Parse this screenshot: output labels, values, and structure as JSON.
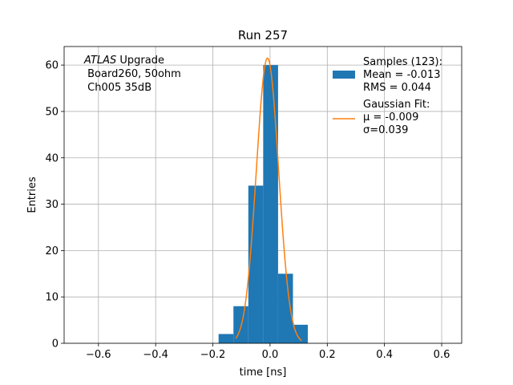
{
  "chart_data": {
    "type": "bar",
    "title": "Run 257",
    "xlabel": "time [ns]",
    "ylabel": "Entries",
    "xlim": [
      -0.72,
      0.67
    ],
    "ylim": [
      0,
      64
    ],
    "grid": true,
    "x_ticks": [
      -0.6,
      -0.4,
      -0.2,
      0.0,
      0.2,
      0.4,
      0.6
    ],
    "x_tick_labels": [
      "−0.6",
      "−0.4",
      "−0.2",
      "0.0",
      "0.2",
      "0.4",
      "0.6"
    ],
    "y_ticks": [
      0,
      10,
      20,
      30,
      40,
      50,
      60
    ],
    "y_tick_labels": [
      "0",
      "10",
      "20",
      "30",
      "40",
      "50",
      "60"
    ],
    "annotation": {
      "line1_italic": "ATLAS",
      "line1_rest": " Upgrade",
      "line2": " Board260, 50ohm",
      "line3": " Ch005 35dB"
    },
    "histogram": {
      "color": "#1f77b4",
      "bins": [
        {
          "x0": -0.18,
          "x1": -0.128,
          "count": 2
        },
        {
          "x0": -0.128,
          "x1": -0.076,
          "count": 8
        },
        {
          "x0": -0.076,
          "x1": -0.024,
          "count": 34
        },
        {
          "x0": -0.024,
          "x1": 0.028,
          "count": 60
        },
        {
          "x0": 0.028,
          "x1": 0.08,
          "count": 15
        },
        {
          "x0": 0.08,
          "x1": 0.132,
          "count": 4
        }
      ]
    },
    "fit": {
      "color": "#ff7f0e",
      "mu": -0.009,
      "sigma": 0.039,
      "amplitude": 61.5,
      "x_range": [
        -0.12,
        0.11
      ]
    },
    "legend": {
      "placement": "top-right",
      "entries": [
        {
          "label_lines": [
            "Samples (123):",
            " Mean = -0.013",
            " RMS = 0.044"
          ],
          "marker": "patch",
          "color": "#1f77b4"
        },
        {
          "label_lines": [
            "Gaussian Fit:",
            " μ = -0.009",
            " σ=0.039"
          ],
          "marker": "line",
          "color": "#ff7f0e"
        }
      ]
    }
  }
}
